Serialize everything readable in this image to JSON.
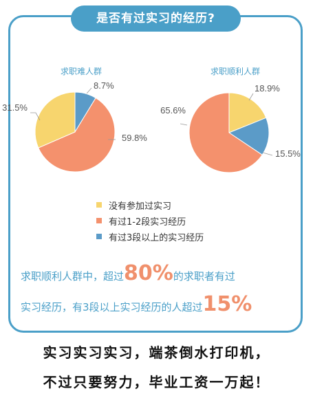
{
  "header": {
    "title": "是否有过实习的经历?"
  },
  "colors": {
    "no_intern": "#f7d56e",
    "one_two": "#f4916d",
    "three_plus": "#5b9bc8",
    "accent": "#4a9fc8",
    "highlight": "#f0906c"
  },
  "chart_data": [
    {
      "type": "pie",
      "title": "求职难人群",
      "categories": [
        "没有参加过实习",
        "有过1-2段实习经历",
        "有过3段以上的实习经历"
      ],
      "values": [
        31.5,
        59.8,
        8.7
      ],
      "labels": [
        "31.5%",
        "59.8%",
        "8.7%"
      ]
    },
    {
      "type": "pie",
      "title": "求职顺利人群",
      "categories": [
        "没有参加过实习",
        "有过1-2段实习经历",
        "有过3段以上的实习经历"
      ],
      "values": [
        18.9,
        65.6,
        15.5
      ],
      "labels": [
        "18.9%",
        "65.6%",
        "15.5%"
      ]
    }
  ],
  "legend": [
    {
      "label": "没有参加过实习",
      "color": "#f7d56e"
    },
    {
      "label": "有过1-2段实习经历",
      "color": "#f4916d"
    },
    {
      "label": "有过3段以上的实习经历",
      "color": "#5b9bc8"
    }
  ],
  "summary": {
    "line1_pre": "求职顺利人群中，超过",
    "line1_big": "80%",
    "line1_post": "的求职者有过",
    "line2_pre": "实习经历，有3段以上实习经历的人超过",
    "line2_big": "15%"
  },
  "handwritten": {
    "line1": "实习实习实习，端茶倒水打印机，",
    "line2": "不过只要努力，毕业工资一万起！"
  }
}
